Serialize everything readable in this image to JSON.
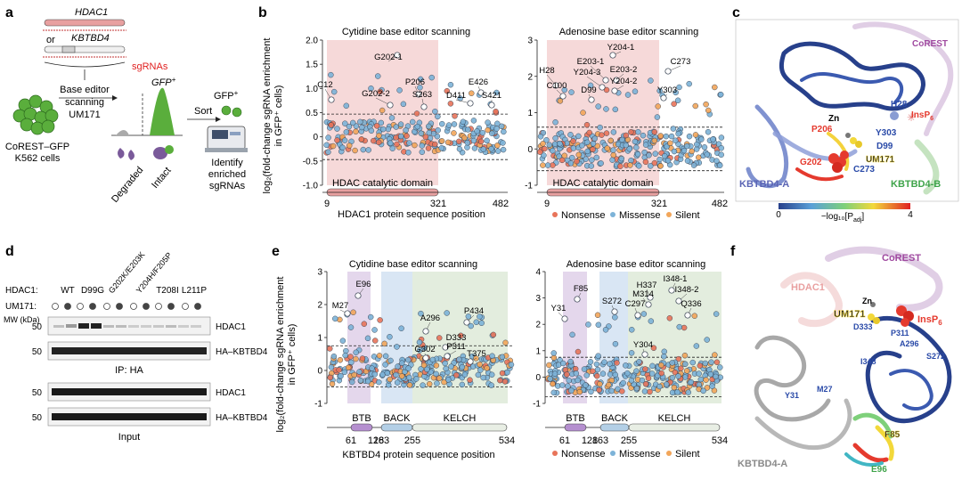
{
  "panels": {
    "a": "a",
    "b": "b",
    "c": "c",
    "d": "d",
    "e": "e",
    "f": "f"
  },
  "panel_a": {
    "gene1": "HDAC1",
    "or": "or",
    "gene2": "KBTBD4",
    "sgrnas": "sgRNAs",
    "screen1": "Base editor",
    "screen2": "scanning",
    "screen3": "UM171",
    "cells1": "CoREST–GFP",
    "cells2": "K562 cells",
    "gfp": "GFP",
    "gfp_sup": "+",
    "sort": "Sort",
    "gfp2": "GFP",
    "degraded": "Degraded",
    "intact": "Intact",
    "identify1": "Identify",
    "identify2": "enriched",
    "identify3": "sgRNAs",
    "colors": {
      "pink": "#e8a0a0",
      "green": "#5aae3c",
      "purple": "#7a5a9a",
      "red": "#e02020"
    }
  },
  "legend": {
    "nonsense": "Nonsense",
    "missense": "Missense",
    "silent": "Silent",
    "nonsense_color": "#e8745a",
    "missense_color": "#7db3d8",
    "silent_color": "#f2a65a"
  },
  "panel_b": {
    "ylabel": "log₂(fold-change sgRNA enrichment",
    "ylabel2": "in GFP⁺ cells)",
    "xlabel": "HDAC1 protein sequence position",
    "domain_label": "HDAC catalytic domain",
    "domain_color": "#f2c9c9",
    "left": {
      "title": "Cytidine base editor scanning",
      "yticks": [
        "2.0",
        "1.5",
        "1.0",
        "0.5",
        "0",
        "-0.5",
        "-1.0"
      ],
      "xticks": [
        "9",
        "321",
        "482"
      ],
      "ylim": [
        -1.0,
        2.0
      ],
      "annotations": [
        "G202-1",
        "C12",
        "G202-2",
        "P206",
        "S263",
        "E426",
        "D411",
        "S421"
      ]
    },
    "right": {
      "title": "Adenosine base editor scanning",
      "yticks": [
        "3",
        "2",
        "1",
        "0",
        "-1"
      ],
      "xticks": [
        "9",
        "321",
        "482"
      ],
      "ylim": [
        -1.0,
        3.0
      ],
      "annotations": [
        "Y204-1",
        "H28",
        "E203-1",
        "C273",
        "Y204-3",
        "E203-2",
        "C100",
        "D99",
        "Y204-2",
        "Y303"
      ]
    }
  },
  "panel_c": {
    "labels": [
      "CoREST",
      "H28",
      "InsP",
      "6",
      "Zn",
      "P206",
      "Y303",
      "D99",
      "G202",
      "UM171",
      "C273",
      "KBTBD4-A",
      "KBTBD4-B"
    ],
    "scale_min": "0",
    "scale_max": "4",
    "scale_label": "−log₁₀[P",
    "scale_sub": "adj",
    "scale_close": "]"
  },
  "panel_d": {
    "cols": [
      "WT",
      "D99G",
      "G202K/E203K",
      "Y204H/F205P",
      "T208I",
      "L211P"
    ],
    "hdac1_label": "HDAC1:",
    "um171_label": "UM171:",
    "mw_label": "MW (kDa)",
    "mw": [
      "50",
      "50",
      "50",
      "50"
    ],
    "bands": [
      "HDAC1",
      "HA–KBTBD4",
      "HDAC1",
      "HA–KBTBD4"
    ],
    "ip": "IP: HA",
    "input": "Input"
  },
  "panel_e": {
    "ylabel": "log₂(fold-change sgRNA enrichment",
    "ylabel2": "in GFP⁺ cells)",
    "xlabel": "KBTBD4 protein sequence position",
    "domains": [
      "BTB",
      "BACK",
      "KELCH"
    ],
    "domain_colors": [
      "#d9c6e4",
      "#c9dcef",
      "#d7e6d0"
    ],
    "xticks": [
      "61",
      "128",
      "163",
      "255",
      "534"
    ],
    "left": {
      "title": "Cytidine base editor scanning",
      "yticks": [
        "3",
        "2",
        "1",
        "0",
        "-1"
      ],
      "ylim": [
        -1.0,
        3.0
      ],
      "annotations": [
        "E96",
        "M27",
        "P434",
        "A296",
        "D333",
        "G302",
        "P311",
        "T375"
      ]
    },
    "right": {
      "title": "Adenosine base editor scanning",
      "yticks": [
        "4",
        "3",
        "2",
        "1",
        "0",
        "-1"
      ],
      "ylim": [
        -1.0,
        4.0
      ],
      "annotations": [
        "I348-1",
        "H337",
        "M314",
        "I348-2",
        "F85",
        "S272",
        "C297",
        "Y31",
        "Q336",
        "Y304"
      ]
    }
  },
  "panel_f": {
    "labels": [
      "CoREST",
      "HDAC1",
      "Zn",
      "UM171",
      "InsP",
      "6",
      "D333",
      "P311",
      "A296",
      "I348",
      "S272",
      "Y31",
      "M27",
      "F85",
      "E96",
      "KBTBD4-A"
    ]
  }
}
